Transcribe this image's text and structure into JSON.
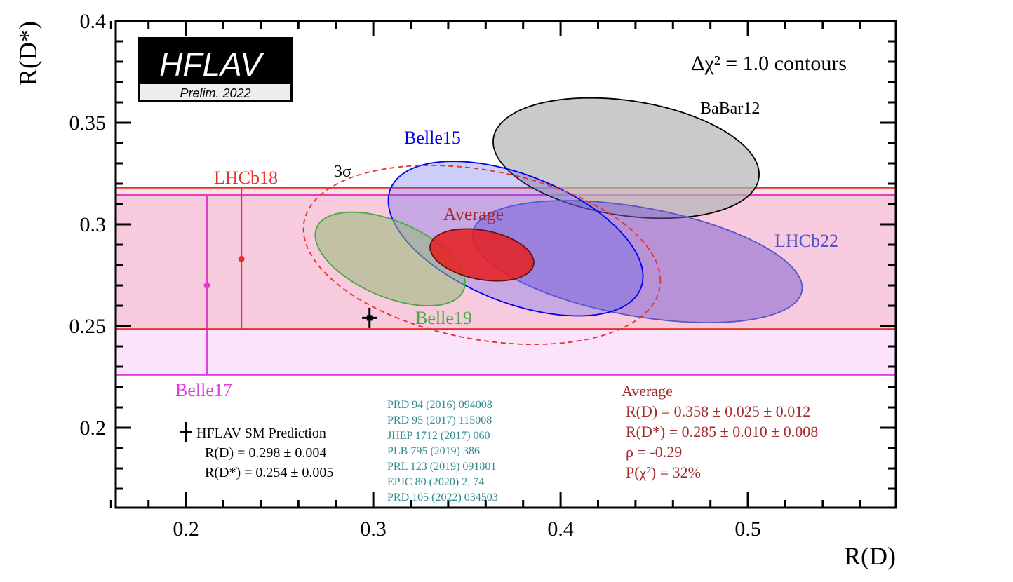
{
  "chart_data": {
    "type": "scatter",
    "title": "",
    "xlabel": "R(D)",
    "ylabel": "R(D*)",
    "xlim": [
      0.1625,
      0.579
    ],
    "ylim": [
      0.1607,
      0.4
    ],
    "xticks": [
      "0.2",
      "0.3",
      "0.4",
      "0.5"
    ],
    "yticks": [
      "0.2",
      "0.25",
      "0.3",
      "0.35",
      "0.4"
    ],
    "contour_label": "Δχ² = 1.0 contours",
    "logo": {
      "title": "HFLAV",
      "subtitle": "Prelim. 2022"
    },
    "bands": [
      {
        "name": "LHCb18",
        "value": 0.283,
        "low": 0.2486,
        "high": 0.318,
        "x": 0.2296,
        "color": "#e8302a"
      },
      {
        "name": "Belle17",
        "value": 0.27,
        "low": 0.2259,
        "high": 0.3145,
        "x": 0.2112,
        "color": "#e040e0"
      }
    ],
    "ellipses": [
      {
        "name": "BaBar12",
        "cx": 0.435,
        "cy": 0.3326,
        "sx": 0.071,
        "sy": 0.0296,
        "rho": -0.27,
        "fill": "rgba(180,180,180,0.7)",
        "stroke": "#000000",
        "label_color": "#000000"
      },
      {
        "name": "LHCb22",
        "cx": 0.441,
        "cy": 0.2817,
        "sx": 0.088,
        "sy": 0.03,
        "rho": -0.43,
        "fill": "rgba(120,90,210,0.5)",
        "stroke": "#5555cc",
        "label_color": "#5050d0"
      },
      {
        "name": "Belle15",
        "cx": 0.376,
        "cy": 0.293,
        "sx": 0.068,
        "sy": 0.038,
        "rho": -0.49,
        "fill": "rgba(90,90,240,0.3)",
        "stroke": "#0000ee",
        "label_color": "#0000ee"
      },
      {
        "name": "Belle19",
        "cx": 0.309,
        "cy": 0.283,
        "sx": 0.04,
        "sy": 0.023,
        "rho": -0.51,
        "fill": "rgba(150,185,120,0.55)",
        "stroke": "#44aa44",
        "label_color": "#44aa44"
      },
      {
        "name": "3σ",
        "cx": 0.358,
        "cy": 0.285,
        "sx": 0.0953,
        "sy": 0.044,
        "rho": -0.29,
        "fill": "none",
        "stroke": "#e8302a",
        "dashed": true,
        "label_color": "#000000"
      },
      {
        "name": "Average",
        "cx": 0.358,
        "cy": 0.285,
        "sx": 0.0277,
        "sy": 0.0128,
        "rho": -0.29,
        "fill": "rgba(230,30,30,0.85)",
        "stroke": "#661111",
        "label_color": "#a52a2a"
      }
    ],
    "sm_prediction": {
      "x": 0.298,
      "x_err": 0.004,
      "y": 0.254,
      "y_err": 0.005
    },
    "sm_legend": {
      "title": "HFLAV SM Prediction",
      "rd": "R(D) = 0.298 ± 0.004",
      "rds": "R(D*) = 0.254 ± 0.005"
    },
    "average_box": {
      "title": "Average",
      "rd": "R(D) = 0.358 ± 0.025 ± 0.012",
      "rds": "R(D*) = 0.285 ± 0.010 ± 0.008",
      "rho": "ρ = -0.29",
      "p": "P(χ²) = 32%"
    },
    "references": [
      "PRD 94 (2016) 094008",
      "PRD 95 (2017) 115008",
      "JHEP 1712 (2017) 060",
      "PLB 795 (2019) 386",
      "PRL 123 (2019) 091801",
      "EPJC 80 (2020) 2, 74",
      "PRD 105 (2022) 034503"
    ]
  }
}
